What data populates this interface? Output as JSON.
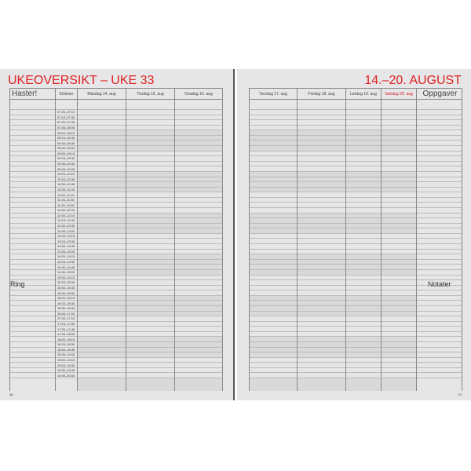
{
  "left_page": {
    "title": "UKEOVERSIKT – UKE 33",
    "headers": {
      "urgent": "Haster!",
      "time": "Klokken",
      "days": [
        "Mandag 14. aug",
        "Tirsdag 15. aug",
        "Onsdag 16. aug"
      ]
    },
    "side_label": "Ring",
    "page_number": "46"
  },
  "right_page": {
    "title": "14.–20. AUGUST",
    "headers": {
      "days": [
        "Torsdag 17. aug",
        "Fredag 18. aug",
        "Lørdag 19. aug",
        "Søndag 20. aug"
      ],
      "tasks": "Oppgaver"
    },
    "side_label": "Notater",
    "page_number": "47"
  },
  "time_slots": [
    "07:00–07:15",
    "07:15–07:30",
    "07:30–07:45",
    "07:45–08:00",
    "08:00–08:15",
    "08:15–08:30",
    "08:30–08:45",
    "08:45–09:00",
    "09:00–09:15",
    "09:15–09:30",
    "09:30–09:45",
    "09:45–10:00",
    "10:00–10:15",
    "10:15–10:30",
    "10:30–10:45",
    "10:45–11:00",
    "11:00–11:15",
    "11:15–11:30",
    "11:30–11:45",
    "11:45–12:00",
    "12:00–12:15",
    "12:15–12:30",
    "12:30–12:45",
    "12:45–13:00",
    "13:00–13:15",
    "13:15–13:30",
    "13:30–13:45",
    "13:45–14:00",
    "14:00–14:15",
    "14:15–14:30",
    "14:30–14:45",
    "14:45–15:00",
    "15:00–15:15",
    "15:15–15:30",
    "15:30–15:45",
    "15:45–16:00",
    "16:00–16:15",
    "16:15–16:30",
    "16:30–16:45",
    "16:45–17:00",
    "17:00–17:15",
    "17:15–17:30",
    "17:30–17:45",
    "17:45–18:00",
    "18:00–18:15",
    "18:15–18:30",
    "18:30–18:45",
    "18:45–19:00",
    "19:00–19:15",
    "19:15–19:30",
    "19:30–19:45",
    "19:45–20:00"
  ],
  "colors": {
    "accent": "#e02020",
    "sunday": "#e02020"
  }
}
